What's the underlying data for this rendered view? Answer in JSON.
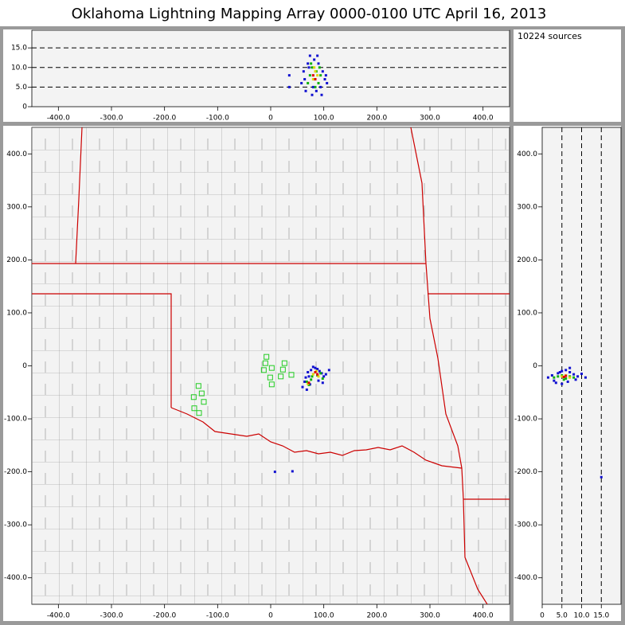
{
  "title": "Oklahoma Lightning Mapping Array   0000-0100 UTC  April 16, 2013",
  "info": "10224 sources",
  "chart_data": [
    {
      "type": "scatter",
      "grid": true,
      "grid_axis": "y",
      "xlim": [
        -450,
        450
      ],
      "ylim": [
        0,
        19.5
      ],
      "xticks": [
        {
          "value": -400,
          "label": "-400.0"
        },
        {
          "value": -300,
          "label": "-300.0"
        },
        {
          "value": -200,
          "label": "-200.0"
        },
        {
          "value": -100,
          "label": "-100.0"
        },
        0,
        {
          "value": 100,
          "label": "100.0"
        },
        {
          "value": 200,
          "label": "200.0"
        },
        {
          "value": 300,
          "label": "300.0"
        },
        {
          "value": 400,
          "label": "400.0"
        }
      ],
      "yticks": [
        0,
        {
          "value": 5,
          "label": "5.0"
        },
        {
          "value": 10,
          "label": "10.0"
        },
        {
          "value": 15,
          "label": "15.0"
        }
      ],
      "series": [
        {
          "color": "#1010d0",
          "x": [
            58,
            62,
            66,
            70,
            74,
            78,
            82,
            86,
            90,
            94,
            98,
            102,
            106,
            64,
            72,
            80,
            88,
            96,
            104,
            35,
            35
          ],
          "values": [
            6,
            9,
            4,
            11,
            13,
            3,
            12,
            4,
            11,
            5,
            9,
            7,
            6,
            7,
            10,
            5,
            13,
            3,
            8,
            5,
            8
          ]
        },
        {
          "color": "#10b010",
          "x": [
            70,
            74,
            78,
            82,
            86,
            90,
            94,
            76,
            84,
            92
          ],
          "values": [
            6,
            8,
            10,
            7,
            9,
            6,
            8,
            11,
            5,
            10
          ]
        },
        {
          "color": "#e0d800",
          "x": [
            80,
            84,
            88,
            82
          ],
          "values": [
            7,
            9,
            8,
            10
          ]
        },
        {
          "color": "#e00000",
          "x": [
            80,
            84
          ],
          "values": [
            8,
            7
          ]
        }
      ]
    },
    {
      "type": "scatter",
      "grid": false,
      "map": true,
      "xlim": [
        -450,
        450
      ],
      "ylim": [
        -450,
        450
      ],
      "xticks": [
        {
          "value": -400,
          "label": "-400.0"
        },
        {
          "value": -300,
          "label": "-300.0"
        },
        {
          "value": -200,
          "label": "-200.0"
        },
        {
          "value": -100,
          "label": "-100.0"
        },
        0,
        {
          "value": 100,
          "label": "100.0"
        },
        {
          "value": 200,
          "label": "200.0"
        },
        {
          "value": 300,
          "label": "300.0"
        },
        {
          "value": 400,
          "label": "400.0"
        }
      ],
      "yticks": [
        {
          "value": -400,
          "label": "-400.0"
        },
        {
          "value": -300,
          "label": "-300.0"
        },
        {
          "value": -200,
          "label": "-200.0"
        },
        {
          "value": -100,
          "label": "-100.0"
        },
        0,
        {
          "value": 100,
          "label": "100.0"
        },
        {
          "value": 200,
          "label": "200.0"
        },
        {
          "value": 300,
          "label": "300.0"
        },
        {
          "value": 400,
          "label": "400.0"
        }
      ],
      "series": [
        {
          "color": "#22cc22",
          "marker": "hollow-square",
          "x": [
            -8,
            -10,
            2,
            -13,
            26,
            23,
            19,
            -1,
            2,
            39,
            -136,
            -130,
            -145,
            -126,
            -144,
            -135
          ],
          "values": [
            17,
            5,
            -4,
            -8,
            5,
            -7,
            -20,
            -22,
            -35,
            -17,
            -38,
            -52,
            -59,
            -68,
            -80,
            -89
          ]
        },
        {
          "color": "#1010d0",
          "x": [
            60,
            64,
            68,
            72,
            76,
            80,
            84,
            88,
            92,
            96,
            100,
            104,
            66,
            74,
            90,
            98,
            8,
            41,
            70,
            110
          ],
          "values": [
            -40,
            -30,
            -45,
            -20,
            -8,
            -2,
            -4,
            -6,
            -10,
            -14,
            -20,
            -16,
            -22,
            -35,
            -28,
            -32,
            -200,
            -199,
            -12,
            -8
          ]
        },
        {
          "color": "#10b010",
          "x": [
            68,
            72,
            78,
            84,
            88,
            94,
            98,
            76
          ],
          "values": [
            -30,
            -36,
            -20,
            -12,
            -18,
            -14,
            -24,
            -26
          ]
        },
        {
          "color": "#e0d800",
          "x": [
            80,
            86,
            90,
            70
          ],
          "values": [
            -16,
            -10,
            -20,
            -34
          ]
        },
        {
          "color": "#e00000",
          "x": [
            84,
            88,
            72
          ],
          "values": [
            -12,
            -16,
            -32
          ]
        }
      ]
    },
    {
      "type": "scatter",
      "grid": true,
      "grid_axis": "x",
      "xlim": [
        0,
        20
      ],
      "ylim": [
        -450,
        450
      ],
      "xticks": [
        0,
        {
          "value": 5,
          "label": "5.0"
        },
        {
          "value": 10,
          "label": "10.0"
        },
        {
          "value": 15,
          "label": "15.0"
        }
      ],
      "yticks": [
        {
          "value": -400,
          "label": "-400.0"
        },
        {
          "value": -300,
          "label": "-300.0"
        },
        {
          "value": -200,
          "label": "-200.0"
        },
        {
          "value": -100,
          "label": "-100.0"
        },
        0,
        {
          "value": 100,
          "label": "100.0"
        },
        {
          "value": 200,
          "label": "200.0"
        },
        {
          "value": 300,
          "label": "300.0"
        },
        {
          "value": 400,
          "label": "400.0"
        }
      ],
      "series": [
        {
          "color": "#1010d0",
          "x": [
            1.5,
            2.5,
            3,
            4,
            5,
            6,
            7,
            8,
            9,
            10,
            11,
            3.5,
            6.5,
            8.5,
            5,
            4.5,
            7,
            15
          ],
          "values": [
            -22,
            -18,
            -28,
            -14,
            -10,
            -8,
            -12,
            -16,
            -20,
            -15,
            -22,
            -32,
            -30,
            -26,
            -34,
            -12,
            -4,
            -210
          ]
        },
        {
          "color": "#10b010",
          "x": [
            3,
            4,
            5,
            6,
            7,
            8,
            5.5
          ],
          "values": [
            -22,
            -20,
            -18,
            -24,
            -20,
            -22,
            -26
          ]
        },
        {
          "color": "#e0d800",
          "x": [
            5,
            6,
            7
          ],
          "values": [
            -20,
            -18,
            -22
          ]
        },
        {
          "color": "#e00000",
          "x": [
            6,
            5.5
          ],
          "values": [
            -19,
            -21
          ]
        }
      ]
    }
  ]
}
